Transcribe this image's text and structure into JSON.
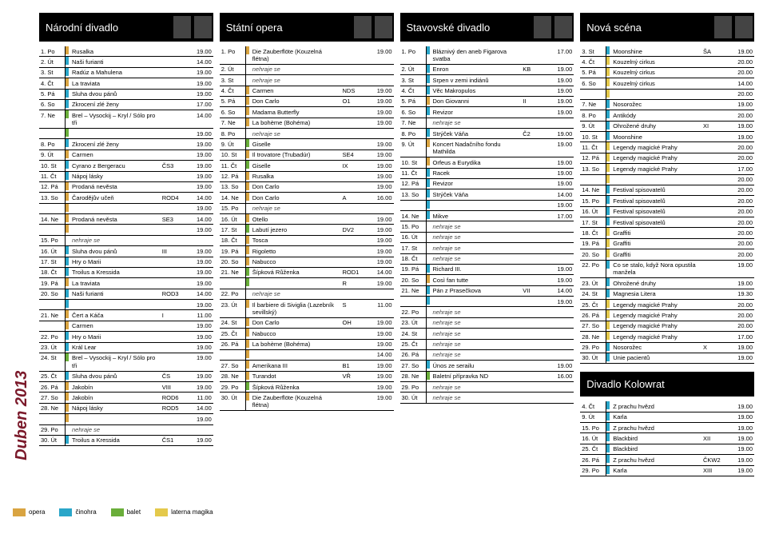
{
  "sideLabel": "Duben 2013",
  "colors": {
    "opera": "#d9a441",
    "cinohra": "#2aa6c9",
    "balet": "#6aae3a",
    "laterna": "#e4c94b",
    "none": "transparent"
  },
  "legend": [
    {
      "color": "opera",
      "label": "opera"
    },
    {
      "color": "cinohra",
      "label": "činohra"
    },
    {
      "color": "balet",
      "label": "balet"
    },
    {
      "color": "laterna",
      "label": "laterna magika"
    }
  ],
  "columns": [
    {
      "title": "Národní divadlo",
      "rows": [
        {
          "day": "1. Po",
          "c": "opera",
          "t": "Rusalka",
          "time": "19.00"
        },
        {
          "day": "2. Út",
          "c": "cinohra",
          "t": "Naši furianti",
          "time": "14.00"
        },
        {
          "day": "3. St",
          "c": "cinohra",
          "t": "Radúz a Mahulena",
          "time": "19.00"
        },
        {
          "day": "4. Čt",
          "c": "opera",
          "t": "La traviata",
          "time": "19.00"
        },
        {
          "day": "5. Pá",
          "c": "cinohra",
          "t": "Sluha dvou pánů",
          "time": "19.00"
        },
        {
          "day": "6. So",
          "c": "cinohra",
          "t": "Zkrocení zlé ženy",
          "time": "17.00"
        },
        {
          "day": "7. Ne",
          "c": "balet",
          "t": "Brel – Vysockij – Kryl / Sólo pro tři",
          "time": "14.00",
          "extra": [
            {
              "time": "19.00"
            }
          ]
        },
        {
          "day": "8. Po",
          "c": "cinohra",
          "t": "Zkrocení zlé ženy",
          "time": "19.00"
        },
        {
          "day": "9. Út",
          "c": "opera",
          "t": "Carmen",
          "time": "19.00"
        },
        {
          "day": "10. St",
          "c": "cinohra",
          "t": "Cyrano z Bergeracu",
          "code": "ČS3",
          "time": "19.00"
        },
        {
          "day": "11. Čt",
          "c": "cinohra",
          "t": "Nápoj lásky",
          "time": "19.00"
        },
        {
          "day": "12. Pá",
          "c": "opera",
          "t": "Prodaná nevěsta",
          "time": "19.00"
        },
        {
          "day": "13. So",
          "c": "opera",
          "t": "Čarodějův učeň",
          "code": "ROD4",
          "time": "14.00",
          "extra": [
            {
              "time": "19.00"
            }
          ]
        },
        {
          "day": "14. Ne",
          "c": "opera",
          "t": "Prodaná nevěsta",
          "code": "SE3",
          "time": "14.00",
          "extra": [
            {
              "time": "19.00"
            }
          ]
        },
        {
          "day": "15. Po",
          "c": "none",
          "t": "nehraje se",
          "no": true
        },
        {
          "day": "16. Út",
          "c": "cinohra",
          "t": "Sluha dvou pánů",
          "code": "III",
          "time": "19.00"
        },
        {
          "day": "17. St",
          "c": "cinohra",
          "t": "Hry o Marii",
          "time": "19.00"
        },
        {
          "day": "18. Čt",
          "c": "cinohra",
          "t": "Troilus a Kressida",
          "time": "19.00"
        },
        {
          "day": "19. Pá",
          "c": "opera",
          "t": "La traviata",
          "time": "19.00"
        },
        {
          "day": "20. So",
          "c": "cinohra",
          "t": "Naši furianti",
          "code": "ROD3",
          "time": "14.00",
          "extra": [
            {
              "time": "19.00"
            }
          ]
        },
        {
          "day": "21. Ne",
          "c": "opera",
          "t": "Čert a Káča",
          "code": "I",
          "time": "11.00",
          "extra": [
            {
              "t": "Carmen",
              "time": "19.00"
            }
          ]
        },
        {
          "day": "22. Po",
          "c": "cinohra",
          "t": "Hry o Marii",
          "time": "19.00"
        },
        {
          "day": "23. Út",
          "c": "cinohra",
          "t": "Král Lear",
          "time": "19.00"
        },
        {
          "day": "24. St",
          "c": "balet",
          "t": "Brel – Vysockij – Kryl / Sólo pro tři",
          "time": "19.00"
        },
        {
          "day": "25. Čt",
          "c": "cinohra",
          "t": "Sluha dvou pánů",
          "code": "ČS",
          "time": "19.00"
        },
        {
          "day": "26. Pá",
          "c": "opera",
          "t": "Jakobín",
          "code": "VIII",
          "time": "19.00"
        },
        {
          "day": "27. So",
          "c": "opera",
          "t": "Jakobín",
          "code": "ROD6",
          "time": "11.00"
        },
        {
          "day": "28. Ne",
          "c": "opera",
          "t": "Nápoj lásky",
          "code": "ROD5",
          "time": "14.00",
          "extra": [
            {
              "time": "19.00"
            }
          ]
        },
        {
          "day": "29. Po",
          "c": "none",
          "t": "nehraje se",
          "no": true
        },
        {
          "day": "30. Út",
          "c": "cinohra",
          "t": "Troilus a Kressida",
          "code": "ČS1",
          "time": "19.00"
        }
      ]
    },
    {
      "title": "Státní opera",
      "rows": [
        {
          "day": "1. Po",
          "c": "opera",
          "t": "Die Zauberflöte (Kouzelná flétna)",
          "time": "19.00"
        },
        {
          "day": "2. Út",
          "c": "none",
          "t": "nehraje se",
          "no": true
        },
        {
          "day": "3. St",
          "c": "none",
          "t": "nehraje se",
          "no": true
        },
        {
          "day": "4. Čt",
          "c": "opera",
          "t": "Carmen",
          "code": "NDS",
          "time": "19.00"
        },
        {
          "day": "5. Pá",
          "c": "opera",
          "t": "Don Carlo",
          "code": "O1",
          "time": "19.00"
        },
        {
          "day": "6. So",
          "c": "opera",
          "t": "Madama Butterfly",
          "time": "19.00"
        },
        {
          "day": "7. Ne",
          "c": "opera",
          "t": "La bohème (Bohéma)",
          "time": "19.00"
        },
        {
          "day": "8. Po",
          "c": "none",
          "t": "nehraje se",
          "no": true
        },
        {
          "day": "9. Út",
          "c": "balet",
          "t": "Giselle",
          "time": "19.00"
        },
        {
          "day": "10. St",
          "c": "opera",
          "t": "Il trovatore (Trubadúr)",
          "code": "SE4",
          "time": "19.00"
        },
        {
          "day": "11. Čt",
          "c": "balet",
          "t": "Giselle",
          "code": "IX",
          "time": "19.00"
        },
        {
          "day": "12. Pá",
          "c": "opera",
          "t": "Rusalka",
          "time": "19.00"
        },
        {
          "day": "13. So",
          "c": "opera",
          "t": "Don Carlo",
          "time": "19.00"
        },
        {
          "day": "14. Ne",
          "c": "opera",
          "t": "Don Carlo",
          "code": "A",
          "time": "16.00"
        },
        {
          "day": "15. Po",
          "c": "none",
          "t": "nehraje se",
          "no": true
        },
        {
          "day": "16. Út",
          "c": "opera",
          "t": "Otello",
          "time": "19.00"
        },
        {
          "day": "17. St",
          "c": "balet",
          "t": "Labutí jezero",
          "code": "DV2",
          "time": "19.00"
        },
        {
          "day": "18. Čt",
          "c": "opera",
          "t": "Tosca",
          "time": "19.00"
        },
        {
          "day": "19. Pá",
          "c": "opera",
          "t": "Rigoletto",
          "time": "19.00"
        },
        {
          "day": "20. So",
          "c": "opera",
          "t": "Nabucco",
          "time": "19.00"
        },
        {
          "day": "21. Ne",
          "c": "balet",
          "t": "Šípková Růženka",
          "code": "ROD1",
          "time": "14.00",
          "extra": [
            {
              "code": "R",
              "time": "19.00"
            }
          ]
        },
        {
          "day": "22. Po",
          "c": "none",
          "t": "nehraje se",
          "no": true
        },
        {
          "day": "23. Út",
          "c": "opera",
          "t": "Il barbiere di Siviglia (Lazebník sevillský)",
          "code": "S",
          "time": "11.00"
        },
        {
          "day": "24. St",
          "c": "opera",
          "t": "Don Carlo",
          "code": "OH",
          "time": "19.00"
        },
        {
          "day": "25. Čt",
          "c": "opera",
          "t": "Nabucco",
          "time": "19.00"
        },
        {
          "day": "26. Pá",
          "c": "opera",
          "t": "La bohème (Bohéma)",
          "time": "19.00",
          "extra": [
            {
              "time": "14.00"
            }
          ]
        },
        {
          "day": "27. So",
          "c": "opera",
          "t": "Amerikana III",
          "code": "B1",
          "time": "19.00"
        },
        {
          "day": "28. Ne",
          "c": "opera",
          "t": "Turandot",
          "code": "VŘ",
          "time": "19.00"
        },
        {
          "day": "29. Po",
          "c": "balet",
          "t": "Šípková Růženka",
          "time": "19.00"
        },
        {
          "day": "30. Út",
          "c": "opera",
          "t": "Die Zauberflöte (Kouzelná flétna)",
          "time": "19.00"
        }
      ]
    },
    {
      "title": "Stavovské divadlo",
      "rows": [
        {
          "day": "1. Po",
          "c": "cinohra",
          "t": "Bláznivý den aneb Figarova svatba",
          "time": "17.00"
        },
        {
          "day": "2. Út",
          "c": "cinohra",
          "t": "Enron",
          "code": "KB",
          "time": "19.00"
        },
        {
          "day": "3. St",
          "c": "cinohra",
          "t": "Srpen v zemi indiánů",
          "time": "19.00"
        },
        {
          "day": "4. Čt",
          "c": "cinohra",
          "t": "Věc Makropulos",
          "time": "19.00"
        },
        {
          "day": "5. Pá",
          "c": "opera",
          "t": "Don Giovanni",
          "code": "II",
          "time": "19.00"
        },
        {
          "day": "6. So",
          "c": "cinohra",
          "t": "Revizor",
          "time": "19.00"
        },
        {
          "day": "7. Ne",
          "c": "none",
          "t": "nehraje se",
          "no": true
        },
        {
          "day": "8. Po",
          "c": "cinohra",
          "t": "Strýček Váňa",
          "code": "Č2",
          "time": "19.00"
        },
        {
          "day": "9. Út",
          "c": "opera",
          "t": "Koncert Nadačního fondu Mathilda",
          "time": "19.00"
        },
        {
          "day": "10. St",
          "c": "opera",
          "t": "Orfeus a Eurydika",
          "time": "19.00"
        },
        {
          "day": "11. Čt",
          "c": "cinohra",
          "t": "Racek",
          "time": "19.00"
        },
        {
          "day": "12. Pá",
          "c": "cinohra",
          "t": "Revizor",
          "time": "19.00"
        },
        {
          "day": "13. So",
          "c": "cinohra",
          "t": "Strýček Váňa",
          "time": "14.00",
          "extra": [
            {
              "time": "19.00"
            }
          ]
        },
        {
          "day": "14. Ne",
          "c": "cinohra",
          "t": "Mikve",
          "time": "17.00"
        },
        {
          "day": "15. Po",
          "c": "none",
          "t": "nehraje se",
          "no": true
        },
        {
          "day": "16. Út",
          "c": "none",
          "t": "nehraje se",
          "no": true
        },
        {
          "day": "17. St",
          "c": "none",
          "t": "nehraje se",
          "no": true
        },
        {
          "day": "18. Čt",
          "c": "none",
          "t": "nehraje se",
          "no": true
        },
        {
          "day": "19. Pá",
          "c": "cinohra",
          "t": "Richard III.",
          "time": "19.00"
        },
        {
          "day": "20. So",
          "c": "opera",
          "t": "Così fan tutte",
          "time": "19.00"
        },
        {
          "day": "21. Ne",
          "c": "cinohra",
          "t": "Pán z Prasečkova",
          "code": "VII",
          "time": "14.00",
          "extra": [
            {
              "time": "19.00"
            }
          ]
        },
        {
          "day": "22. Po",
          "c": "none",
          "t": "nehraje se",
          "no": true
        },
        {
          "day": "23. Út",
          "c": "none",
          "t": "nehraje se",
          "no": true
        },
        {
          "day": "24. St",
          "c": "none",
          "t": "nehraje se",
          "no": true
        },
        {
          "day": "25. Čt",
          "c": "none",
          "t": "nehraje se",
          "no": true
        },
        {
          "day": "26. Pá",
          "c": "none",
          "t": "nehraje se",
          "no": true
        },
        {
          "day": "27. So",
          "c": "cinohra",
          "t": "Únos ze serailu",
          "time": "19.00"
        },
        {
          "day": "28. Ne",
          "c": "balet",
          "t": "Baletní přípravka ND",
          "time": "16.00"
        },
        {
          "day": "29. Po",
          "c": "none",
          "t": "nehraje se",
          "no": true
        },
        {
          "day": "30. Út",
          "c": "none",
          "t": "nehraje se",
          "no": true
        }
      ]
    },
    {
      "title": "Nová scéna",
      "rows": [
        {
          "day": "3. St",
          "c": "cinohra",
          "t": "Moonshine",
          "code": "ŠA",
          "time": "19.00"
        },
        {
          "day": "4. Čt",
          "c": "laterna",
          "t": "Kouzelný cirkus",
          "time": "20.00"
        },
        {
          "day": "5. Pá",
          "c": "laterna",
          "t": "Kouzelný cirkus",
          "time": "20.00"
        },
        {
          "day": "6. So",
          "c": "laterna",
          "t": "Kouzelný cirkus",
          "time": "14.00",
          "extra": [
            {
              "time": "20.00"
            }
          ]
        },
        {
          "day": "7. Ne",
          "c": "cinohra",
          "t": "Nosorožec",
          "time": "19.00"
        },
        {
          "day": "8. Po",
          "c": "cinohra",
          "t": "Antikódy",
          "time": "20.00"
        },
        {
          "day": "9. Út",
          "c": "cinohra",
          "t": "Ohrožené druhy",
          "code": "XI",
          "time": "19.00"
        },
        {
          "day": "10. St",
          "c": "cinohra",
          "t": "Moonshine",
          "time": "19.00"
        },
        {
          "day": "11. Čt",
          "c": "laterna",
          "t": "Legendy magické Prahy",
          "time": "20.00"
        },
        {
          "day": "12. Pá",
          "c": "laterna",
          "t": "Legendy magické Prahy",
          "time": "20.00"
        },
        {
          "day": "13. So",
          "c": "laterna",
          "t": "Legendy magické Prahy",
          "time": "17.00",
          "extra": [
            {
              "time": "20.00"
            }
          ]
        },
        {
          "day": "14. Ne",
          "c": "cinohra",
          "t": "Festival spisovatelů",
          "time": "20.00"
        },
        {
          "day": "15. Po",
          "c": "cinohra",
          "t": "Festival spisovatelů",
          "time": "20.00"
        },
        {
          "day": "16. Út",
          "c": "cinohra",
          "t": "Festival spisovatelů",
          "time": "20.00"
        },
        {
          "day": "17. St",
          "c": "cinohra",
          "t": "Festival spisovatelů",
          "time": "20.00"
        },
        {
          "day": "18. Čt",
          "c": "laterna",
          "t": "Graffiti",
          "time": "20.00"
        },
        {
          "day": "19. Pá",
          "c": "laterna",
          "t": "Graffiti",
          "time": "20.00"
        },
        {
          "day": "20. So",
          "c": "laterna",
          "t": "Graffiti",
          "time": "20.00"
        },
        {
          "day": "22. Po",
          "c": "cinohra",
          "t": "Co se stalo, když Nora opustila manžela",
          "time": "19.00"
        },
        {
          "day": "23. Út",
          "c": "cinohra",
          "t": "Ohrožené druhy",
          "time": "19.00"
        },
        {
          "day": "24. St",
          "c": "cinohra",
          "t": "Magnesia Litera",
          "time": "19.30"
        },
        {
          "day": "25. Čt",
          "c": "laterna",
          "t": "Legendy magické Prahy",
          "time": "20.00"
        },
        {
          "day": "26. Pá",
          "c": "laterna",
          "t": "Legendy magické Prahy",
          "time": "20.00"
        },
        {
          "day": "27. So",
          "c": "laterna",
          "t": "Legendy magické Prahy",
          "time": "20.00"
        },
        {
          "day": "28. Ne",
          "c": "laterna",
          "t": "Legendy magické Prahy",
          "time": "17.00"
        },
        {
          "day": "29. Po",
          "c": "cinohra",
          "t": "Nosorožec",
          "code": "X",
          "time": "19.00"
        },
        {
          "day": "30. Út",
          "c": "cinohra",
          "t": "Unie pacientů",
          "time": "19.00"
        }
      ],
      "sections": [
        {
          "title": "Divadlo Kolowrat",
          "rows": [
            {
              "day": "4. Čt",
              "c": "cinohra",
              "t": "Z prachu hvězd",
              "time": "19.00"
            },
            {
              "day": "9. Út",
              "c": "cinohra",
              "t": "Karla",
              "time": "19.00"
            },
            {
              "day": "15. Po",
              "c": "cinohra",
              "t": "Z prachu hvězd",
              "time": "19.00"
            },
            {
              "day": "16. Út",
              "c": "cinohra",
              "t": "Blackbird",
              "code": "XII",
              "time": "19.00"
            },
            {
              "day": "25. Čt",
              "c": "cinohra",
              "t": "Blackbird",
              "time": "19.00"
            },
            {
              "day": "26. Pá",
              "c": "cinohra",
              "t": "Z prachu hvězd",
              "code": "ČKW2",
              "time": "19.00"
            },
            {
              "day": "29. Po",
              "c": "cinohra",
              "t": "Karla",
              "code": "XIII",
              "time": "19.00"
            }
          ]
        }
      ]
    }
  ]
}
